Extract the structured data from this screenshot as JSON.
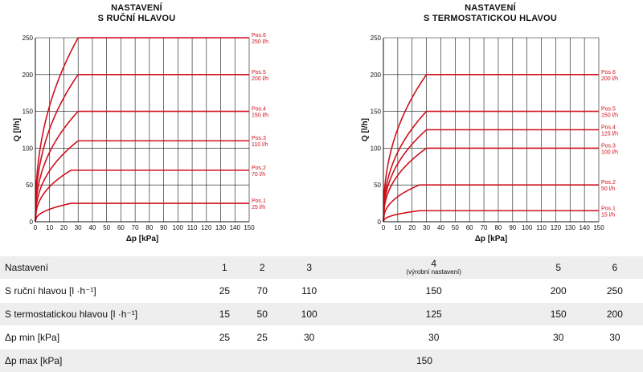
{
  "chart_data": [
    {
      "type": "line",
      "title": "NASTAVENÍ\nS RUČNÍ HLAVOU",
      "title_lines": [
        "NASTAVENÍ",
        "S RUČNÍ HLAVOU"
      ],
      "xlabel": "Δp [kPa]",
      "ylabel": "Q [l/h]",
      "xlim": [
        0,
        150
      ],
      "ylim": [
        0,
        250
      ],
      "xticks": [
        0,
        10,
        20,
        30,
        40,
        50,
        60,
        70,
        80,
        90,
        100,
        110,
        120,
        130,
        140,
        150
      ],
      "yticks": [
        0,
        50,
        100,
        150,
        200,
        250
      ],
      "grid": true,
      "series": [
        {
          "name": "Pos.1",
          "label2": "25 l/h",
          "plateau": 25,
          "dp_min": 25
        },
        {
          "name": "Pos.2",
          "label2": "70 l/h",
          "plateau": 70,
          "dp_min": 25
        },
        {
          "name": "Pos.3",
          "label2": "110 l/h",
          "plateau": 110,
          "dp_min": 30
        },
        {
          "name": "Pos.4",
          "label2": "150 l/h",
          "plateau": 150,
          "dp_min": 30
        },
        {
          "name": "Pos.5",
          "label2": "200 l/h",
          "plateau": 200,
          "dp_min": 30
        },
        {
          "name": "Pos.6",
          "label2": "250 l/h",
          "plateau": 250,
          "dp_min": 30
        }
      ]
    },
    {
      "type": "line",
      "title": "NASTAVENÍ\nS TERMOSTATICKOU HLAVOU",
      "title_lines": [
        "NASTAVENÍ",
        "S TERMOSTATICKOU HLAVOU"
      ],
      "xlabel": "Δp [kPa]",
      "ylabel": "Q [l/h]",
      "xlim": [
        0,
        150
      ],
      "ylim": [
        0,
        250
      ],
      "xticks": [
        0,
        10,
        20,
        30,
        40,
        50,
        60,
        70,
        80,
        90,
        100,
        110,
        120,
        130,
        140,
        150
      ],
      "yticks": [
        0,
        50,
        100,
        150,
        200,
        250
      ],
      "grid": true,
      "series": [
        {
          "name": "Pos.1",
          "label2": "15 l/h",
          "plateau": 15,
          "dp_min": 25
        },
        {
          "name": "Pos.2",
          "label2": "50 l/h",
          "plateau": 50,
          "dp_min": 25
        },
        {
          "name": "Pos.3",
          "label2": "100 l/h",
          "plateau": 100,
          "dp_min": 30
        },
        {
          "name": "Pos.4",
          "label2": "125 l/h",
          "plateau": 125,
          "dp_min": 30
        },
        {
          "name": "Pos.5",
          "label2": "150 l/h",
          "plateau": 150,
          "dp_min": 30
        },
        {
          "name": "Pos.6",
          "label2": "200 l/h",
          "plateau": 200,
          "dp_min": 30
        }
      ]
    }
  ],
  "colors": {
    "curve": "#d0101c",
    "grid": "#111111",
    "row_shade": "#eeeeee"
  },
  "table": {
    "header": {
      "label": "Nastavení",
      "cols": [
        "1",
        "2",
        "3",
        "4",
        "5",
        "6"
      ],
      "col4_note": "(výrobní nastavení)"
    },
    "rows": [
      {
        "label": "S ruční hlavou [l ·h⁻¹]",
        "values": [
          "25",
          "70",
          "110",
          "150",
          "200",
          "250"
        ]
      },
      {
        "label": "S termostatickou hlavou [l ·h⁻¹]",
        "values": [
          "15",
          "50",
          "100",
          "125",
          "150",
          "200"
        ]
      },
      {
        "label": "Δp min [kPa]",
        "values": [
          "25",
          "25",
          "30",
          "30",
          "30",
          "30"
        ]
      },
      {
        "label": "Δp max [kPa]",
        "value_merged": "150"
      }
    ]
  }
}
